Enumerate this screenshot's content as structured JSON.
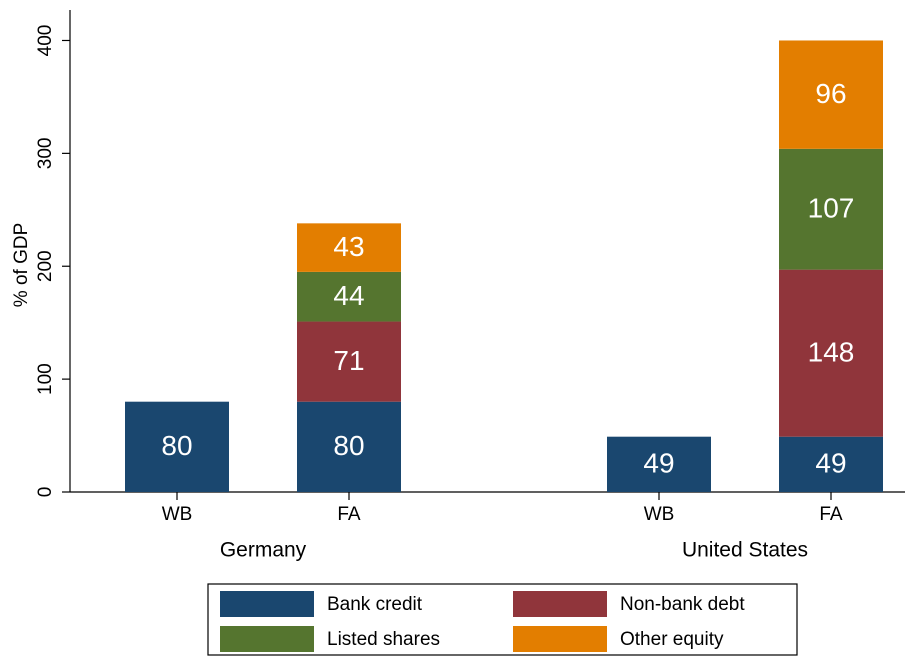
{
  "chart_data": {
    "type": "stacked_bar",
    "y_label": "% of GDP",
    "categories": [
      "WB",
      "FA",
      "WB",
      "FA"
    ],
    "groups": [
      "Germany",
      "United States"
    ],
    "series": [
      {
        "name": "Bank credit",
        "color": "#1a476f",
        "values": [
          80,
          80,
          49,
          49
        ]
      },
      {
        "name": "Non-bank debt",
        "color": "#90353b",
        "values": [
          null,
          71,
          null,
          148
        ]
      },
      {
        "name": "Listed shares",
        "color": "#55752f",
        "values": [
          null,
          44,
          null,
          107
        ]
      },
      {
        "name": "Other equity",
        "color": "#e37e00",
        "values": [
          null,
          43,
          null,
          96
        ]
      }
    ],
    "ylim": [
      0,
      427
    ],
    "yticks": [
      0,
      100,
      200,
      300,
      400
    ],
    "grid": false
  }
}
